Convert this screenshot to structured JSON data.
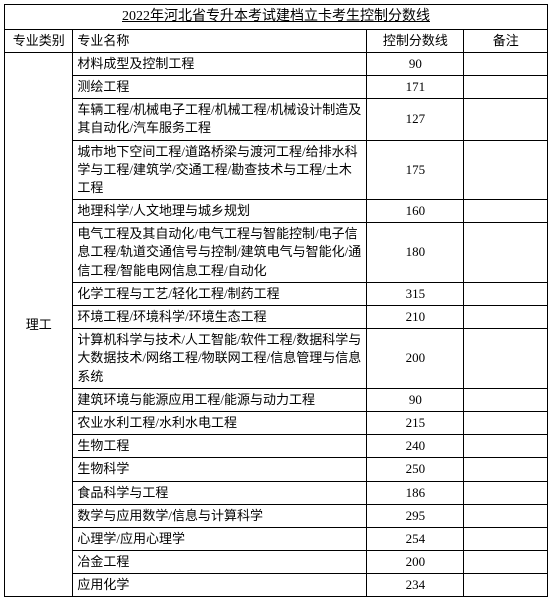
{
  "title": "2022年河北省专升本考试建档立卡考生控制分数线",
  "headers": {
    "category": "专业类别",
    "major": "专业名称",
    "score": "控制分数线",
    "note": "备注"
  },
  "category": "理工",
  "rows": [
    {
      "major": "材料成型及控制工程",
      "score": "90",
      "note": ""
    },
    {
      "major": "测绘工程",
      "score": "171",
      "note": ""
    },
    {
      "major": "车辆工程/机械电子工程/机械工程/机械设计制造及其自动化/汽车服务工程",
      "score": "127",
      "note": ""
    },
    {
      "major": "城市地下空间工程/道路桥梁与渡河工程/给排水科学与工程/建筑学/交通工程/勘查技术与工程/土木工程",
      "score": "175",
      "note": ""
    },
    {
      "major": "地理科学/人文地理与城乡规划",
      "score": "160",
      "note": ""
    },
    {
      "major": "电气工程及其自动化/电气工程与智能控制/电子信息工程/轨道交通信号与控制/建筑电气与智能化/通信工程/智能电网信息工程/自动化",
      "score": "180",
      "note": ""
    },
    {
      "major": "化学工程与工艺/轻化工程/制药工程",
      "score": "315",
      "note": ""
    },
    {
      "major": "环境工程/环境科学/环境生态工程",
      "score": "210",
      "note": ""
    },
    {
      "major": "计算机科学与技术/人工智能/软件工程/数据科学与大数据技术/网络工程/物联网工程/信息管理与信息系统",
      "score": "200",
      "note": ""
    },
    {
      "major": "建筑环境与能源应用工程/能源与动力工程",
      "score": "90",
      "note": ""
    },
    {
      "major": "农业水利工程/水利水电工程",
      "score": "215",
      "note": ""
    },
    {
      "major": "生物工程",
      "score": "240",
      "note": ""
    },
    {
      "major": "生物科学",
      "score": "250",
      "note": ""
    },
    {
      "major": "食品科学与工程",
      "score": "186",
      "note": ""
    },
    {
      "major": "数学与应用数学/信息与计算科学",
      "score": "295",
      "note": ""
    },
    {
      "major": "心理学/应用心理学",
      "score": "254",
      "note": ""
    },
    {
      "major": "冶金工程",
      "score": "200",
      "note": ""
    },
    {
      "major": "应用化学",
      "score": "234",
      "note": ""
    }
  ]
}
